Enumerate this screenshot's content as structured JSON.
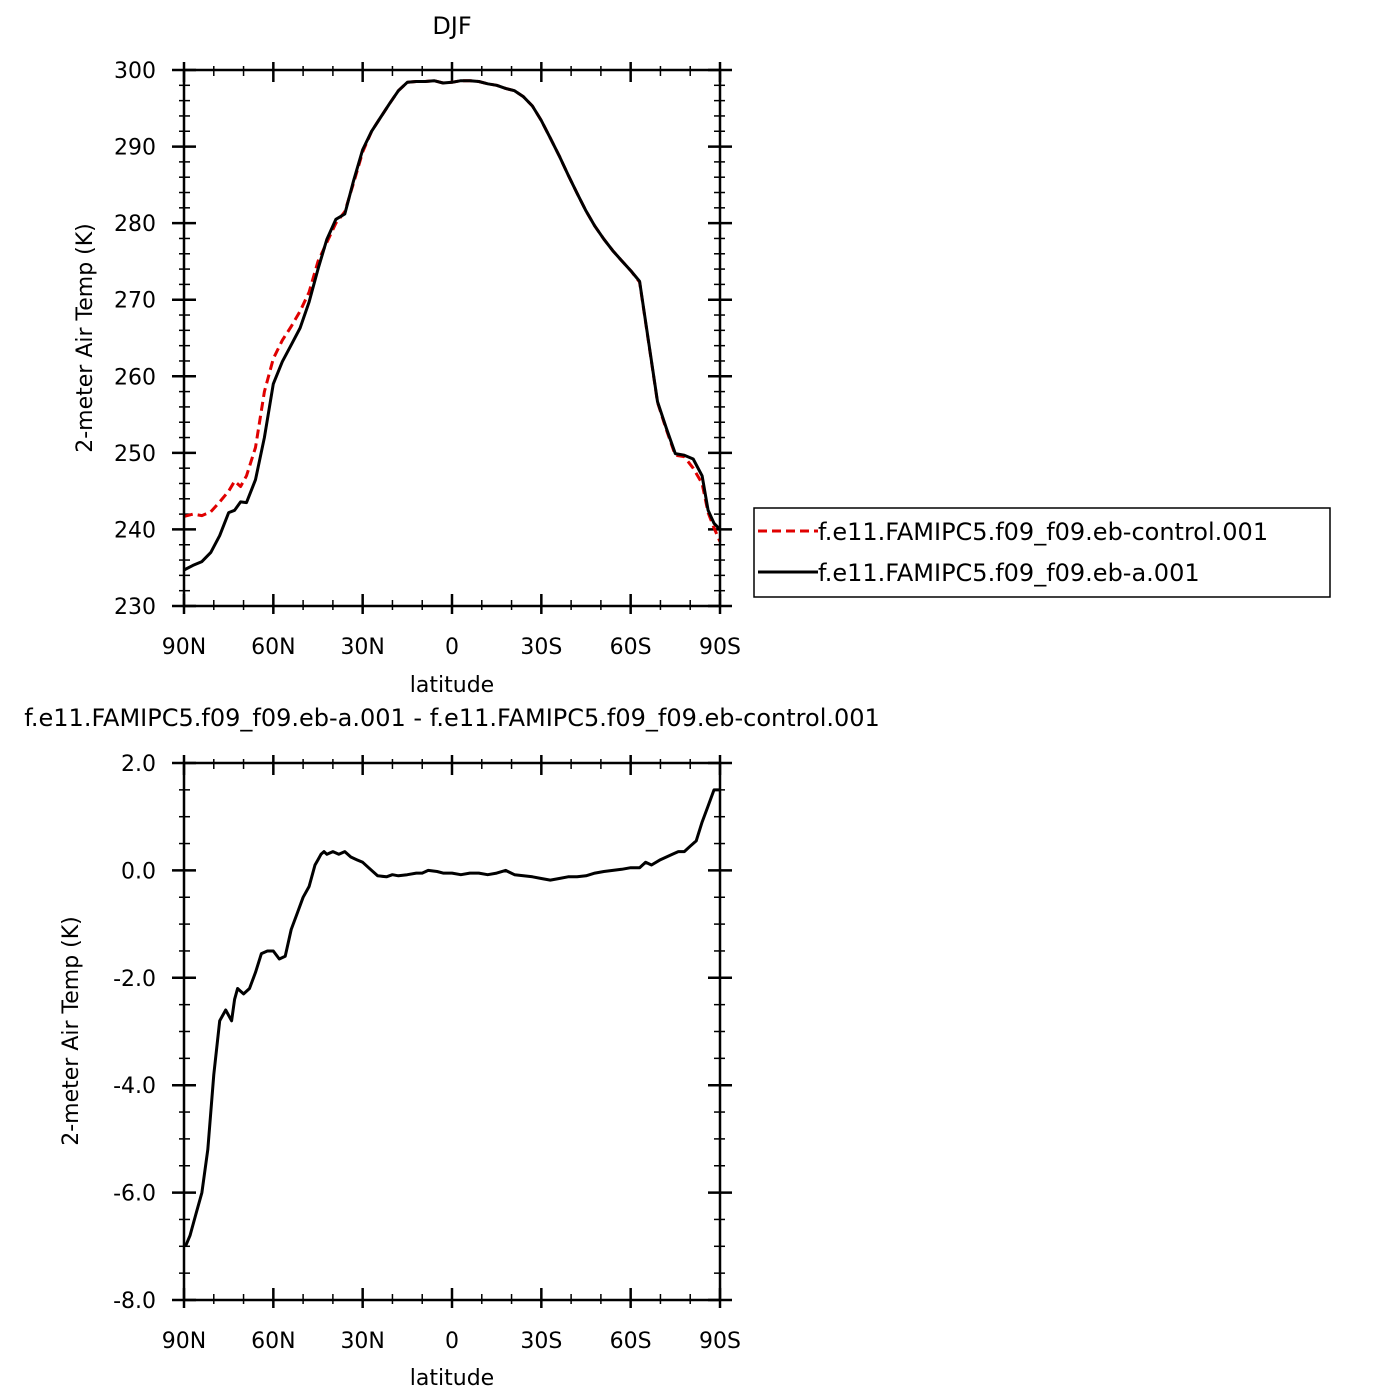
{
  "chart_data": [
    {
      "type": "line",
      "title": "DJF",
      "xlabel": "latitude",
      "ylabel": "2-meter Air Temp (K)",
      "xlim": [
        90,
        -90
      ],
      "ylim": [
        230,
        300
      ],
      "x_ticks": [
        90,
        60,
        30,
        0,
        -30,
        -60,
        -90
      ],
      "x_tick_labels": [
        "90N",
        "60N",
        "30N",
        "0",
        "30S",
        "60S",
        "90S"
      ],
      "y_ticks": [
        230,
        240,
        250,
        260,
        270,
        280,
        290,
        300
      ],
      "y_tick_labels": [
        "230",
        "240",
        "250",
        "260",
        "270",
        "280",
        "290",
        "300"
      ],
      "legend_position": "right",
      "grid": false,
      "series": [
        {
          "name": "f.e11.FAMIPC5.f09_f09.eb-control.001",
          "color": "#e00000",
          "dash": "dashed",
          "x": [
            90,
            87,
            84,
            81,
            78,
            75,
            73,
            71,
            69,
            66,
            63,
            60,
            57,
            54,
            51,
            48,
            45,
            42,
            39,
            36,
            33,
            30,
            27,
            24,
            21,
            18,
            15,
            12,
            9,
            6,
            3,
            0,
            -3,
            -6,
            -9,
            -12,
            -15,
            -18,
            -21,
            -24,
            -27,
            -30,
            -33,
            -36,
            -39,
            -42,
            -45,
            -48,
            -51,
            -54,
            -57,
            -60,
            -63,
            -66,
            -69,
            -72,
            -75,
            -78,
            -81,
            -84,
            -86,
            -88,
            -90
          ],
          "y": [
            241.7,
            242.0,
            241.8,
            242.3,
            243.6,
            245.0,
            246.3,
            245.6,
            247.0,
            250.7,
            258.0,
            262.3,
            264.7,
            266.5,
            268.5,
            271.0,
            275.0,
            277.5,
            280.0,
            281.5,
            285.3,
            289.3,
            292.0,
            293.8,
            295.6,
            297.3,
            298.4,
            298.5,
            298.5,
            298.6,
            298.3,
            298.4,
            298.6,
            298.6,
            298.5,
            298.2,
            298.0,
            297.6,
            297.3,
            296.5,
            295.3,
            293.4,
            291.1,
            288.8,
            286.3,
            283.9,
            281.6,
            279.6,
            277.9,
            276.4,
            275.1,
            273.8,
            272.3,
            264.5,
            256.6,
            253.0,
            249.7,
            249.5,
            248.0,
            246.0,
            242.2,
            240.2,
            238.4
          ]
        },
        {
          "name": "f.e11.FAMIPC5.f09_f09.eb-a.001",
          "color": "#000000",
          "dash": "solid",
          "x": [
            90,
            87,
            84,
            81,
            78,
            75,
            73,
            71,
            69,
            66,
            63,
            60,
            57,
            54,
            51,
            48,
            45,
            42,
            39,
            36,
            33,
            30,
            27,
            24,
            21,
            18,
            15,
            12,
            9,
            6,
            3,
            0,
            -3,
            -6,
            -9,
            -12,
            -15,
            -18,
            -21,
            -24,
            -27,
            -30,
            -33,
            -36,
            -39,
            -42,
            -45,
            -48,
            -51,
            -54,
            -57,
            -60,
            -63,
            -66,
            -69,
            -72,
            -75,
            -78,
            -81,
            -84,
            -86,
            -88,
            -90
          ],
          "y": [
            234.7,
            235.3,
            235.8,
            237.0,
            239.2,
            242.2,
            242.5,
            243.6,
            243.5,
            246.5,
            252.0,
            259.0,
            261.9,
            264.1,
            266.3,
            269.7,
            274.0,
            277.9,
            280.5,
            281.2,
            285.6,
            289.6,
            292.0,
            293.8,
            295.6,
            297.3,
            298.4,
            298.5,
            298.5,
            298.6,
            298.3,
            298.4,
            298.6,
            298.6,
            298.5,
            298.2,
            298.0,
            297.6,
            297.3,
            296.5,
            295.3,
            293.4,
            291.1,
            288.8,
            286.3,
            283.9,
            281.6,
            279.6,
            277.9,
            276.4,
            275.1,
            273.8,
            272.4,
            264.6,
            256.7,
            253.2,
            249.9,
            249.7,
            249.2,
            247.0,
            242.5,
            240.8,
            240.0
          ]
        }
      ]
    },
    {
      "type": "line",
      "title": "f.e11.FAMIPC5.f09_f09.eb-a.001 - f.e11.FAMIPC5.f09_f09.eb-control.001",
      "xlabel": "latitude",
      "ylabel": "2-meter Air Temp (K)",
      "xlim": [
        90,
        -90
      ],
      "ylim": [
        -8,
        2
      ],
      "x_ticks": [
        90,
        60,
        30,
        0,
        -30,
        -60,
        -90
      ],
      "x_tick_labels": [
        "90N",
        "60N",
        "30N",
        "0",
        "30S",
        "60S",
        "90S"
      ],
      "y_ticks": [
        -8,
        -6,
        -4,
        -2,
        0,
        2
      ],
      "y_tick_labels": [
        "-8.0",
        "-6.0",
        "-4.0",
        "-2.0",
        "0.0",
        "2.0"
      ],
      "grid": false,
      "series": [
        {
          "color": "#000000",
          "dash": "solid",
          "x": [
            89.5,
            88,
            86,
            84,
            82,
            80,
            78,
            76,
            74,
            73,
            72,
            71,
            70,
            68,
            66,
            64,
            62,
            60,
            58,
            56,
            54,
            52,
            50,
            48,
            46,
            45,
            44,
            43,
            42,
            40,
            38,
            36,
            34,
            32,
            30,
            28,
            25,
            22,
            20,
            18,
            15,
            12,
            10,
            8,
            5,
            3,
            0,
            -3,
            -6,
            -9,
            -12,
            -15,
            -18,
            -21,
            -24,
            -27,
            -30,
            -33,
            -36,
            -39,
            -42,
            -45,
            -48,
            -51,
            -54,
            -57,
            -60,
            -63,
            -65,
            -67,
            -70,
            -72,
            -74,
            -76,
            -78,
            -80,
            -82,
            -84,
            -86,
            -88,
            -90
          ],
          "y": [
            -7.0,
            -6.8,
            -6.4,
            -6.0,
            -5.2,
            -3.8,
            -2.8,
            -2.6,
            -2.8,
            -2.4,
            -2.2,
            -2.25,
            -2.3,
            -2.2,
            -1.9,
            -1.55,
            -1.5,
            -1.5,
            -1.65,
            -1.6,
            -1.1,
            -0.8,
            -0.5,
            -0.3,
            0.1,
            0.2,
            0.3,
            0.35,
            0.3,
            0.35,
            0.3,
            0.35,
            0.25,
            0.2,
            0.15,
            0.05,
            -0.1,
            -0.12,
            -0.08,
            -0.1,
            -0.08,
            -0.05,
            -0.05,
            0.0,
            -0.02,
            -0.05,
            -0.05,
            -0.08,
            -0.05,
            -0.05,
            -0.08,
            -0.05,
            0.0,
            -0.08,
            -0.1,
            -0.12,
            -0.15,
            -0.18,
            -0.15,
            -0.12,
            -0.12,
            -0.1,
            -0.05,
            -0.02,
            0.0,
            0.02,
            0.05,
            0.05,
            0.15,
            0.1,
            0.2,
            0.25,
            0.3,
            0.35,
            0.35,
            0.45,
            0.55,
            0.9,
            1.2,
            1.5,
            1.5
          ]
        }
      ]
    }
  ]
}
